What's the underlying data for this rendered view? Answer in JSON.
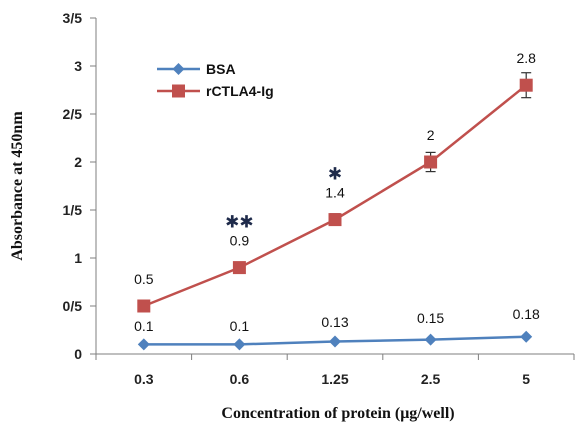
{
  "chart_data": {
    "type": "line",
    "categories": [
      "0.3",
      "0.6",
      "1.25",
      "2.5",
      "5"
    ],
    "y_tick_labels": [
      "0",
      "0/5",
      "1",
      "1/5",
      "2",
      "2/5",
      "3",
      "3/5"
    ],
    "ylim": [
      0,
      3.5
    ],
    "xlabel": "Concentration of protein (μg/well)",
    "ylabel": "Absorbance at 450nm",
    "legend_position": "top-left",
    "grid": false,
    "series": [
      {
        "name": "BSA",
        "color": "#4f81bd",
        "marker": "diamond",
        "values": [
          0.1,
          0.1,
          0.13,
          0.15,
          0.18
        ],
        "labels": [
          "0.1",
          "0.1",
          "0.13",
          "0.15",
          "0.18"
        ]
      },
      {
        "name": "rCTLA4-Ig",
        "color": "#c0504d",
        "marker": "square",
        "values": [
          0.5,
          0.9,
          1.4,
          2.0,
          2.8
        ],
        "errors": [
          0.03,
          0.04,
          0.06,
          0.1,
          0.13
        ],
        "labels": [
          "0.5",
          "0.9",
          "1.4",
          "2",
          "2.8"
        ]
      }
    ],
    "annotations": [
      {
        "category": "0.6",
        "text": "✱✱"
      },
      {
        "category": "1.25",
        "text": "✱"
      }
    ]
  }
}
